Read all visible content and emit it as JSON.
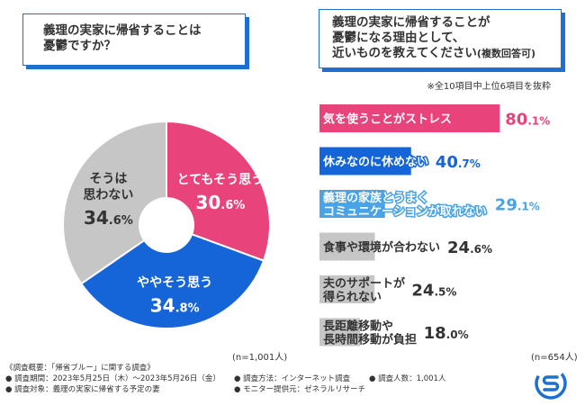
{
  "question_left": {
    "lines": [
      "義理の実家に帰省することは",
      "憂鬱ですか？"
    ]
  },
  "question_right": {
    "lines": [
      "義理の実家に帰省することが",
      "憂鬱になる理由として、",
      "近いものを教えてください"
    ],
    "suffix": "(複数回答可)"
  },
  "note": "※全10項目中上位6項目を抜粋",
  "pie_n": "(n=1,001人)",
  "bar_n": "(n=654人)",
  "footer": {
    "summary": "《調査概要：「帰省ブルー」に関する調査》",
    "period": "● 調査期間：2023年5月25日（木）〜2023年5月26日（金）",
    "target": "● 調査対象：義理の実家に帰省する予定の妻",
    "method": "● 調査方法：インターネット調査",
    "monitor": "● モニター提供元：ゼネラルリサーチ",
    "people": "● 調査人数：1,001人"
  },
  "colors": {
    "pink": "#e8437a",
    "blue": "#1565d8",
    "lightblue": "#4aa3e6",
    "gray": "#c6c6c6",
    "brand": "#1f6fd1"
  },
  "chart_data": [
    {
      "type": "pie",
      "title": "義理の実家に帰省することは憂鬱ですか？",
      "slices": [
        {
          "label": "とてもそう思う",
          "value": 30.6,
          "display": "30.6%",
          "color": "#e8437a"
        },
        {
          "label": "ややそう思う",
          "value": 34.8,
          "display": "34.8%",
          "color": "#1565d8"
        },
        {
          "label": "そうは 思わない",
          "value": 34.6,
          "display": "34.6%",
          "color": "#c6c6c6"
        }
      ],
      "n": "(n=1,001人)"
    },
    {
      "type": "bar",
      "title": "義理の実家に帰省することが憂鬱になる理由として、近いものを教えてください(複数回答可)",
      "categories": [
        [
          "気を使うことがストレス"
        ],
        [
          "休みなのに休めない"
        ],
        [
          "義理の家族とうまく",
          "コミュニケーションが取れない"
        ],
        [
          "食事や環境が合わない"
        ],
        [
          "夫のサポートが",
          "得られない"
        ],
        [
          "長距離移動や",
          "長時間移動が負担"
        ]
      ],
      "values": [
        80.1,
        40.7,
        29.1,
        24.6,
        24.5,
        18.0
      ],
      "value_labels": [
        "80.1%",
        "40.7%",
        "29.1%",
        "24.6%",
        "24.5%",
        "18.0%"
      ],
      "colors": [
        "#e8437a",
        "#1565d8",
        "#4aa3e6",
        "#c6c6c6",
        "#c6c6c6",
        "#c6c6c6"
      ],
      "xlim": [
        0,
        100
      ],
      "n": "(n=654人)"
    }
  ]
}
